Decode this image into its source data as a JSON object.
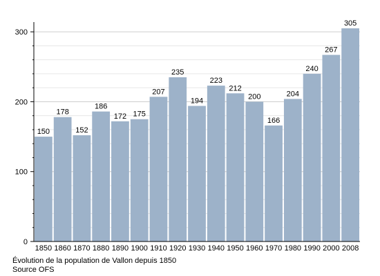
{
  "chart_data": {
    "type": "bar",
    "categories": [
      "1850",
      "1860",
      "1870",
      "1880",
      "1890",
      "1900",
      "1910",
      "1920",
      "1930",
      "1940",
      "1950",
      "1960",
      "1970",
      "1980",
      "1990",
      "2000",
      "2008"
    ],
    "values": [
      150,
      178,
      152,
      186,
      172,
      175,
      207,
      235,
      194,
      223,
      212,
      200,
      166,
      204,
      240,
      267,
      305
    ],
    "ylim": [
      0,
      310
    ],
    "yticks": [
      0,
      100,
      200,
      300
    ],
    "grid": true,
    "bar_color": "#9db2c9",
    "grid_color": "#cccccc",
    "value_labels": [
      "150",
      "178",
      "152",
      "186",
      "172",
      "175",
      "207",
      "235",
      "194",
      "223",
      "212",
      "200",
      "166",
      "204",
      "240",
      "267",
      "305"
    ]
  },
  "caption": {
    "line1": "Évolution de la population de Vallon depuis 1850",
    "line2": "Source OFS"
  }
}
